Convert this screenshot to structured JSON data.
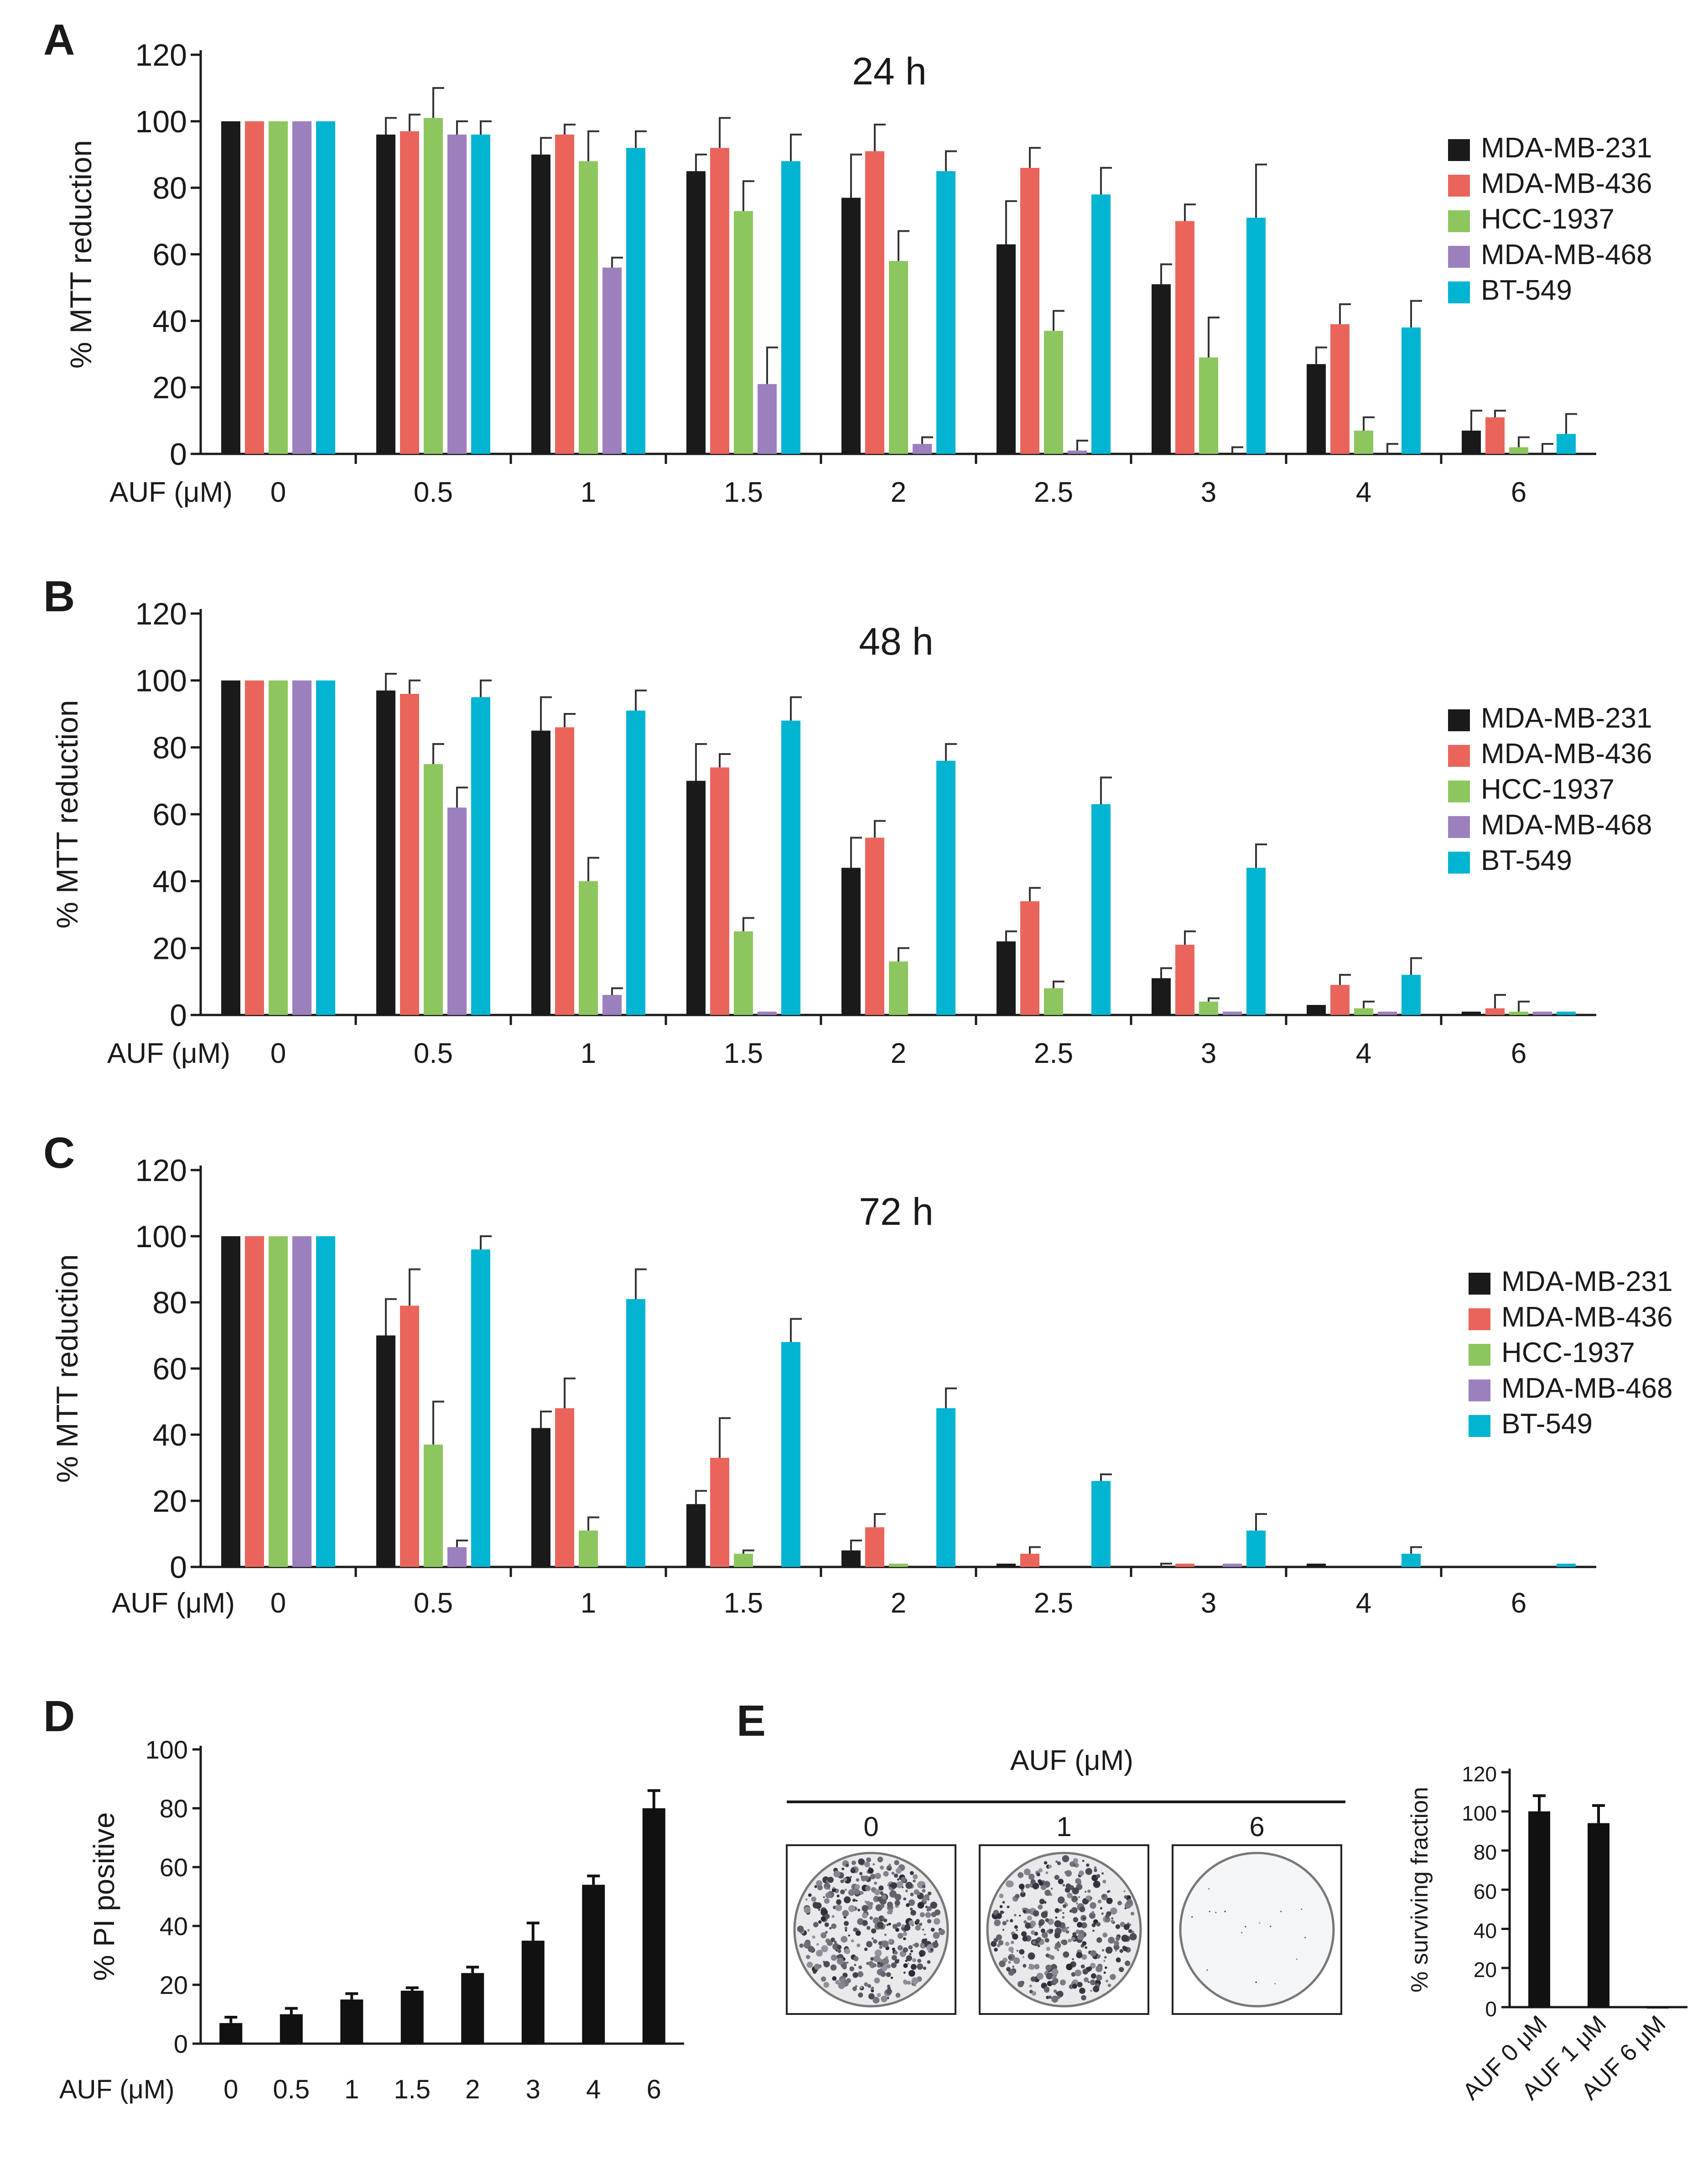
{
  "colors": {
    "series": [
      "#1a1a1a",
      "#e9655c",
      "#8dc65e",
      "#9b80bd",
      "#00b4d2"
    ],
    "single": "#111111"
  },
  "chart_data": [
    {
      "id": "A",
      "panel_label": "A",
      "type": "bar",
      "title": "24 h",
      "xlabel": "AUF (μM)",
      "ylabel": "% MTT reduction",
      "ylim": [
        0,
        120
      ],
      "yticks": [
        "0",
        "20",
        "40",
        "60",
        "80",
        "100",
        "120"
      ],
      "categories": [
        "0",
        "0.5",
        "1",
        "1.5",
        "2",
        "2.5",
        "3",
        "4",
        "6"
      ],
      "legend": "right",
      "series": [
        {
          "name": "MDA-MB-231",
          "values": [
            100,
            96,
            90,
            85,
            77,
            63,
            51,
            27,
            7
          ],
          "errors": [
            0,
            5,
            5,
            5,
            13,
            13,
            6,
            5,
            6
          ]
        },
        {
          "name": "MDA-MB-436",
          "values": [
            100,
            97,
            96,
            92,
            91,
            86,
            70,
            39,
            11
          ],
          "errors": [
            0,
            5,
            3,
            9,
            8,
            6,
            5,
            6,
            2
          ]
        },
        {
          "name": "HCC-1937",
          "values": [
            100,
            101,
            88,
            73,
            58,
            37,
            29,
            7,
            2
          ],
          "errors": [
            0,
            9,
            9,
            9,
            9,
            6,
            12,
            4,
            3
          ]
        },
        {
          "name": "MDA-MB-468",
          "values": [
            100,
            96,
            56,
            21,
            3,
            1,
            0,
            0,
            0
          ],
          "errors": [
            0,
            4,
            3,
            11,
            2,
            3,
            2,
            3,
            3
          ]
        },
        {
          "name": "BT-549",
          "values": [
            100,
            96,
            92,
            88,
            85,
            78,
            71,
            38,
            6
          ],
          "errors": [
            0,
            4,
            5,
            8,
            6,
            8,
            16,
            8,
            6
          ]
        }
      ]
    },
    {
      "id": "B",
      "panel_label": "B",
      "type": "bar",
      "title": "48 h",
      "xlabel": "AUF (μM)",
      "ylabel": "% MTT reduction",
      "ylim": [
        0,
        120
      ],
      "yticks": [
        "0",
        "20",
        "40",
        "60",
        "80",
        "100",
        "120"
      ],
      "categories": [
        "0",
        "0.5",
        "1",
        "1.5",
        "2",
        "2.5",
        "3",
        "4",
        "6"
      ],
      "legend": "right",
      "series": [
        {
          "name": "MDA-MB-231",
          "values": [
            100,
            97,
            85,
            70,
            44,
            22,
            11,
            3,
            1
          ],
          "errors": [
            0,
            5,
            10,
            11,
            9,
            3,
            3,
            0,
            0
          ]
        },
        {
          "name": "MDA-MB-436",
          "values": [
            100,
            96,
            86,
            74,
            53,
            34,
            21,
            9,
            2
          ],
          "errors": [
            0,
            4,
            4,
            4,
            5,
            4,
            4,
            3,
            4
          ]
        },
        {
          "name": "HCC-1937",
          "values": [
            100,
            75,
            40,
            25,
            16,
            8,
            4,
            2,
            1
          ],
          "errors": [
            0,
            6,
            7,
            4,
            4,
            2,
            1,
            2,
            3
          ]
        },
        {
          "name": "MDA-MB-468",
          "values": [
            100,
            62,
            6,
            1,
            0,
            0,
            1,
            1,
            1
          ],
          "errors": [
            0,
            6,
            2,
            0,
            0,
            0,
            0,
            0,
            0
          ]
        },
        {
          "name": "BT-549",
          "values": [
            100,
            95,
            91,
            88,
            76,
            63,
            44,
            12,
            1
          ],
          "errors": [
            0,
            5,
            6,
            7,
            5,
            8,
            7,
            5,
            0
          ]
        }
      ]
    },
    {
      "id": "C",
      "panel_label": "C",
      "type": "bar",
      "title": "72 h",
      "xlabel": "AUF (μM)",
      "ylabel": "% MTT reduction",
      "ylim": [
        0,
        120
      ],
      "yticks": [
        "0",
        "20",
        "40",
        "60",
        "80",
        "100",
        "120"
      ],
      "categories": [
        "0",
        "0.5",
        "1",
        "1.5",
        "2",
        "2.5",
        "3",
        "4",
        "6"
      ],
      "legend": "right",
      "series": [
        {
          "name": "MDA-MB-231",
          "values": [
            100,
            70,
            42,
            19,
            5,
            1,
            0,
            1,
            0
          ],
          "errors": [
            0,
            11,
            5,
            4,
            3,
            0,
            1,
            0,
            0
          ]
        },
        {
          "name": "MDA-MB-436",
          "values": [
            100,
            79,
            48,
            33,
            12,
            4,
            1,
            0,
            0
          ],
          "errors": [
            0,
            11,
            9,
            12,
            4,
            2,
            0,
            0,
            0
          ]
        },
        {
          "name": "HCC-1937",
          "values": [
            100,
            37,
            11,
            4,
            1,
            0,
            0,
            0,
            0
          ],
          "errors": [
            0,
            13,
            4,
            1,
            0,
            0,
            0,
            0,
            0
          ]
        },
        {
          "name": "MDA-MB-468",
          "values": [
            100,
            6,
            0,
            0,
            0,
            0,
            1,
            0,
            0
          ],
          "errors": [
            0,
            2,
            0,
            0,
            0,
            0,
            0,
            0,
            0
          ]
        },
        {
          "name": "BT-549",
          "values": [
            100,
            96,
            81,
            68,
            48,
            26,
            11,
            4,
            1
          ],
          "errors": [
            0,
            4,
            9,
            7,
            6,
            2,
            5,
            2,
            0
          ]
        }
      ]
    },
    {
      "id": "D",
      "panel_label": "D",
      "type": "bar",
      "title": "",
      "xlabel": "AUF (μM)",
      "ylabel": "% PI positive",
      "ylim": [
        0,
        100
      ],
      "yticks": [
        "0",
        "20",
        "40",
        "60",
        "80",
        "100"
      ],
      "categories": [
        "0",
        "0.5",
        "1",
        "1.5",
        "2",
        "3",
        "4",
        "6"
      ],
      "series": [
        {
          "name": "PI positive",
          "values": [
            7,
            10,
            15,
            18,
            24,
            35,
            54,
            80
          ],
          "errors": [
            2,
            2,
            2,
            1,
            2,
            6,
            3,
            6
          ]
        }
      ]
    },
    {
      "id": "E",
      "panel_label": "E",
      "type": "bar",
      "title": "",
      "xlabel": "",
      "ylabel": "% surviving fraction",
      "ylim": [
        0,
        120
      ],
      "yticks": [
        "0",
        "20",
        "40",
        "60",
        "80",
        "100",
        "120"
      ],
      "categories": [
        "AUF 0 μM",
        "AUF 1 μM",
        "AUF 6 μM"
      ],
      "series": [
        {
          "name": "surviving fraction",
          "values": [
            100,
            94,
            0
          ],
          "errors": [
            8,
            9,
            0
          ]
        }
      ]
    }
  ],
  "colony_assay": {
    "header": "AUF (μM)",
    "wells": [
      {
        "label": "0",
        "density": 1.0
      },
      {
        "label": "1",
        "density": 0.85
      },
      {
        "label": "6",
        "density": 0.02
      }
    ]
  }
}
